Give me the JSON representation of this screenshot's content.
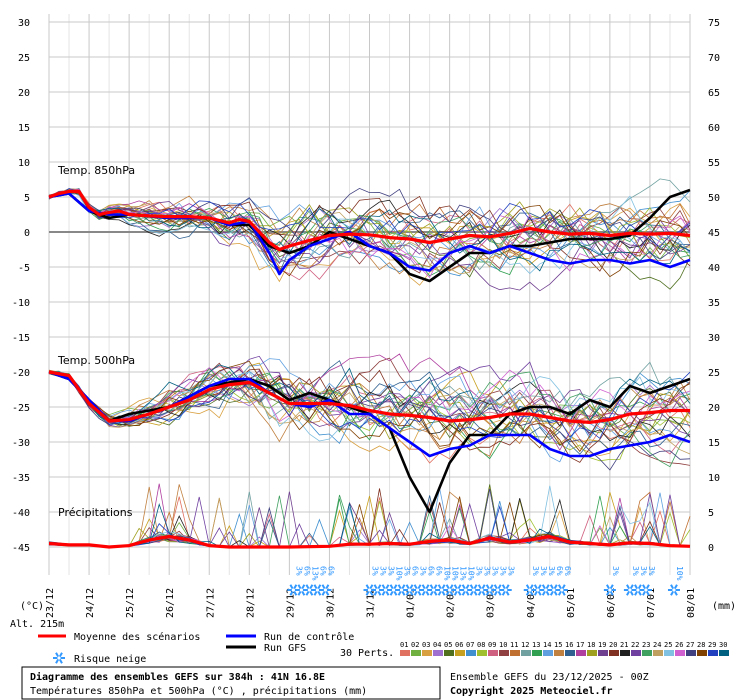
{
  "chart_data": {
    "type": "line",
    "title": "Diagramme des ensembles GEFS sur 384h : 41N 16.8E",
    "subtitle": "Températures 850hPa et 500hPa (°C) , précipitations (mm)",
    "run_info": "Ensemble GEFS du 23/12/2025 - 00Z",
    "copyright": "Copyright 2025 Meteociel.fr",
    "left_axis_label": "(°C)",
    "right_axis_label": "(mm)",
    "altitude_label": "Alt. 215m",
    "left_ticks": [
      "30",
      "25",
      "20",
      "15",
      "10",
      "5",
      "0",
      "-5",
      "-10",
      "-15",
      "-20",
      "-25",
      "-30",
      "-35",
      "-40",
      "-45"
    ],
    "right_ticks": [
      "75",
      "70",
      "65",
      "60",
      "55",
      "50",
      "45",
      "40",
      "35",
      "30",
      "25",
      "20",
      "15",
      "10",
      "5",
      "0"
    ],
    "left_range": [
      -45,
      30
    ],
    "right_range": [
      0,
      75
    ],
    "x_labels": [
      "23/12",
      "24/12",
      "25/12",
      "26/12",
      "27/12",
      "28/12",
      "29/12",
      "30/12",
      "31/12",
      "01/01",
      "02/01",
      "03/01",
      "04/01",
      "05/01",
      "06/01",
      "07/01",
      "08/01"
    ],
    "x_unit": "days from 23/12 00Z",
    "panels": [
      {
        "label": "Temp. 850hPa"
      },
      {
        "label": "Temp. 500hPa"
      },
      {
        "label": "Précipitations"
      }
    ],
    "series": [
      {
        "name": "Moyenne des scénarios",
        "color": "#ff0000",
        "kind": "t850",
        "values": [
          [
            0,
            5
          ],
          [
            0.25,
            5.5
          ],
          [
            0.5,
            5.8
          ],
          [
            0.75,
            5.8
          ],
          [
            1,
            3.5
          ],
          [
            1.25,
            2.5
          ],
          [
            1.5,
            2.8
          ],
          [
            1.75,
            3
          ],
          [
            2,
            2.5
          ],
          [
            2.5,
            2.3
          ],
          [
            3,
            2.2
          ],
          [
            3.5,
            2.2
          ],
          [
            4,
            2
          ],
          [
            4.5,
            1.3
          ],
          [
            4.75,
            1.8
          ],
          [
            5,
            1.5
          ],
          [
            5.25,
            0
          ],
          [
            5.5,
            -1.5
          ],
          [
            5.75,
            -2.5
          ],
          [
            6,
            -2
          ],
          [
            6.5,
            -1.2
          ],
          [
            7,
            -0.5
          ],
          [
            7.5,
            -0.3
          ],
          [
            8,
            -0.4
          ],
          [
            8.5,
            -0.8
          ],
          [
            9,
            -1
          ],
          [
            9.5,
            -1.5
          ],
          [
            10,
            -1
          ],
          [
            10.5,
            -0.5
          ],
          [
            11,
            -0.7
          ],
          [
            11.5,
            -0.2
          ],
          [
            12,
            0.5
          ],
          [
            12.5,
            0
          ],
          [
            13,
            -0.3
          ],
          [
            13.5,
            -0.2
          ],
          [
            14,
            -0.5
          ],
          [
            14.5,
            -0.2
          ],
          [
            15,
            -0.3
          ],
          [
            15.5,
            -0.2
          ],
          [
            16,
            -0.5
          ]
        ]
      },
      {
        "name": "Moyenne des scénarios",
        "color": "#ff0000",
        "kind": "t500",
        "values": [
          [
            0,
            -20
          ],
          [
            0.5,
            -20.5
          ],
          [
            1,
            -24.5
          ],
          [
            1.5,
            -27
          ],
          [
            2,
            -26.8
          ],
          [
            2.5,
            -26
          ],
          [
            3,
            -25
          ],
          [
            3.5,
            -24
          ],
          [
            4,
            -22.5
          ],
          [
            4.5,
            -21.8
          ],
          [
            5,
            -21.5
          ],
          [
            5.5,
            -23
          ],
          [
            6,
            -24.5
          ],
          [
            6.5,
            -24.5
          ],
          [
            7,
            -24.5
          ],
          [
            7.5,
            -24.8
          ],
          [
            8,
            -25.5
          ],
          [
            8.5,
            -26
          ],
          [
            9,
            -26.2
          ],
          [
            9.5,
            -26.5
          ],
          [
            10,
            -27
          ],
          [
            10.5,
            -26.8
          ],
          [
            11,
            -26.5
          ],
          [
            11.5,
            -26
          ],
          [
            12,
            -26
          ],
          [
            12.5,
            -26.5
          ],
          [
            13,
            -27
          ],
          [
            13.5,
            -27.2
          ],
          [
            14,
            -26.8
          ],
          [
            14.5,
            -26
          ],
          [
            15,
            -25.8
          ],
          [
            15.5,
            -25.5
          ],
          [
            16,
            -25.5
          ]
        ]
      },
      {
        "name": "Moyenne des scénarios",
        "color": "#ff0000",
        "kind": "precip",
        "values": [
          [
            0,
            0.5
          ],
          [
            0.5,
            0.3
          ],
          [
            1,
            0.3
          ],
          [
            1.5,
            0
          ],
          [
            2,
            0.2
          ],
          [
            2.5,
            1
          ],
          [
            3,
            1.5
          ],
          [
            3.5,
            1
          ],
          [
            4,
            0.2
          ],
          [
            4.5,
            0
          ],
          [
            5,
            0
          ],
          [
            6,
            0
          ],
          [
            7,
            0.1
          ],
          [
            7.5,
            0.4
          ],
          [
            8,
            0.4
          ],
          [
            8.5,
            0.5
          ],
          [
            9,
            0.4
          ],
          [
            9.5,
            0.8
          ],
          [
            10,
            1
          ],
          [
            10.5,
            0.5
          ],
          [
            11,
            1.3
          ],
          [
            11.5,
            0.7
          ],
          [
            12,
            1
          ],
          [
            12.5,
            1.5
          ],
          [
            13,
            0.7
          ],
          [
            13.5,
            0.5
          ],
          [
            14,
            0.3
          ],
          [
            14.5,
            0.6
          ],
          [
            15,
            0.5
          ],
          [
            15.5,
            0.2
          ],
          [
            16,
            0.1
          ]
        ]
      },
      {
        "name": "Run de contrôle",
        "color": "#0000ff",
        "kind": "t850",
        "values": [
          [
            0,
            5
          ],
          [
            0.5,
            5.5
          ],
          [
            1,
            3
          ],
          [
            1.5,
            2.5
          ],
          [
            2,
            2.5
          ],
          [
            3,
            2
          ],
          [
            4,
            2
          ],
          [
            4.5,
            1
          ],
          [
            5,
            1.5
          ],
          [
            5.5,
            -3
          ],
          [
            5.75,
            -6
          ],
          [
            6,
            -4
          ],
          [
            6.5,
            -2
          ],
          [
            7,
            -1
          ],
          [
            7.5,
            0
          ],
          [
            8,
            -2
          ],
          [
            8.5,
            -3
          ],
          [
            9,
            -5
          ],
          [
            9.5,
            -5.5
          ],
          [
            10,
            -3
          ],
          [
            10.5,
            -2
          ],
          [
            11,
            -3
          ],
          [
            11.5,
            -2
          ],
          [
            12,
            -3
          ],
          [
            12.5,
            -4
          ],
          [
            13,
            -4.5
          ],
          [
            13.5,
            -4
          ],
          [
            14,
            -4
          ],
          [
            14.5,
            -4.5
          ],
          [
            15,
            -4
          ],
          [
            15.5,
            -5
          ],
          [
            16,
            -4
          ]
        ]
      },
      {
        "name": "Run de contrôle",
        "color": "#0000ff",
        "kind": "t500",
        "values": [
          [
            0,
            -20
          ],
          [
            0.5,
            -21
          ],
          [
            1,
            -24
          ],
          [
            1.5,
            -27
          ],
          [
            2,
            -27
          ],
          [
            3,
            -25
          ],
          [
            4,
            -22
          ],
          [
            4.5,
            -21
          ],
          [
            5,
            -21
          ],
          [
            5.5,
            -23
          ],
          [
            6,
            -24.5
          ],
          [
            6.5,
            -25
          ],
          [
            7,
            -24
          ],
          [
            7.5,
            -26
          ],
          [
            8,
            -26
          ],
          [
            8.5,
            -28
          ],
          [
            9,
            -30
          ],
          [
            9.5,
            -32
          ],
          [
            10,
            -31
          ],
          [
            10.5,
            -30.5
          ],
          [
            11,
            -29
          ],
          [
            11.5,
            -29
          ],
          [
            12,
            -29
          ],
          [
            12.5,
            -31
          ],
          [
            13,
            -32
          ],
          [
            13.5,
            -32
          ],
          [
            14,
            -31
          ],
          [
            14.5,
            -30.5
          ],
          [
            15,
            -30
          ],
          [
            15.5,
            -29
          ],
          [
            16,
            -30
          ]
        ]
      },
      {
        "name": "Run GFS",
        "color": "#000000",
        "kind": "t850",
        "values": [
          [
            0,
            5
          ],
          [
            0.5,
            5.5
          ],
          [
            1,
            3
          ],
          [
            1.5,
            2
          ],
          [
            2,
            2.5
          ],
          [
            3,
            2
          ],
          [
            4,
            2
          ],
          [
            4.5,
            1
          ],
          [
            5,
            1
          ],
          [
            5.5,
            -2
          ],
          [
            6,
            -3
          ],
          [
            6.5,
            -2
          ],
          [
            7,
            0
          ],
          [
            7.5,
            -1
          ],
          [
            8,
            -2
          ],
          [
            8.5,
            -3
          ],
          [
            9,
            -6
          ],
          [
            9.5,
            -7
          ],
          [
            10,
            -5
          ],
          [
            10.5,
            -3
          ],
          [
            11,
            -3
          ],
          [
            11.5,
            -2
          ],
          [
            12,
            -2
          ],
          [
            12.5,
            -1.5
          ],
          [
            13,
            -1
          ],
          [
            13.5,
            -1
          ],
          [
            14,
            -1
          ],
          [
            14.5,
            -0.5
          ],
          [
            15,
            2
          ],
          [
            15.5,
            5
          ],
          [
            16,
            6
          ]
        ]
      },
      {
        "name": "Run GFS",
        "color": "#000000",
        "kind": "t500",
        "values": [
          [
            0,
            -20
          ],
          [
            0.5,
            -21
          ],
          [
            1,
            -24
          ],
          [
            1.5,
            -27
          ],
          [
            2,
            -26
          ],
          [
            3,
            -25
          ],
          [
            4,
            -22
          ],
          [
            5,
            -21
          ],
          [
            5.5,
            -22
          ],
          [
            6,
            -24
          ],
          [
            6.5,
            -23
          ],
          [
            7,
            -24
          ],
          [
            7.5,
            -25
          ],
          [
            8,
            -26
          ],
          [
            8.5,
            -28
          ],
          [
            9,
            -35
          ],
          [
            9.5,
            -40
          ],
          [
            10,
            -33
          ],
          [
            10.5,
            -29
          ],
          [
            11,
            -29
          ],
          [
            11.5,
            -26
          ],
          [
            12,
            -25
          ],
          [
            12.5,
            -25
          ],
          [
            13,
            -26
          ],
          [
            13.5,
            -24
          ],
          [
            14,
            -25
          ],
          [
            14.5,
            -22
          ],
          [
            15,
            -23
          ],
          [
            15.5,
            -22
          ],
          [
            16,
            -21
          ]
        ]
      }
    ],
    "snow_risk": [
      {
        "day": 6.1,
        "label": "3%"
      },
      {
        "day": 6.3,
        "label": "6%"
      },
      {
        "day": 6.5,
        "label": "13%"
      },
      {
        "day": 6.7,
        "label": "6%"
      },
      {
        "day": 6.9,
        "label": "6%"
      },
      {
        "day": 8.0,
        "label": "3%"
      },
      {
        "day": 8.2,
        "label": "3%"
      },
      {
        "day": 8.4,
        "label": "3%"
      },
      {
        "day": 8.6,
        "label": "10%"
      },
      {
        "day": 8.8,
        "label": "3%"
      },
      {
        "day": 9.0,
        "label": "6%"
      },
      {
        "day": 9.2,
        "label": "3%"
      },
      {
        "day": 9.4,
        "label": "6%"
      },
      {
        "day": 9.6,
        "label": "6%"
      },
      {
        "day": 9.8,
        "label": "10%"
      },
      {
        "day": 10.0,
        "label": "10%"
      },
      {
        "day": 10.2,
        "label": "13%"
      },
      {
        "day": 10.4,
        "label": "10%"
      },
      {
        "day": 10.6,
        "label": "3%"
      },
      {
        "day": 10.8,
        "label": "3%"
      },
      {
        "day": 11.0,
        "label": "3%"
      },
      {
        "day": 11.2,
        "label": "3%"
      },
      {
        "day": 11.4,
        "label": "3%"
      },
      {
        "day": 12.0,
        "label": "3%"
      },
      {
        "day": 12.2,
        "label": "3%"
      },
      {
        "day": 12.4,
        "label": "3%"
      },
      {
        "day": 12.6,
        "label": "6%"
      },
      {
        "day": 12.8,
        "label": "6%"
      },
      {
        "day": 14.0,
        "label": "3%"
      },
      {
        "day": 14.5,
        "label": "3%"
      },
      {
        "day": 14.7,
        "label": "3%"
      },
      {
        "day": 14.9,
        "label": "3%"
      },
      {
        "day": 15.6,
        "label": "10%"
      }
    ],
    "legend": {
      "mean": "Moyenne des scénarios",
      "control": "Run de contrôle",
      "gfs": "Run GFS",
      "snow": "Risque neige",
      "perts_label": "30 Perts.",
      "pert_numbers": [
        "01",
        "02",
        "03",
        "04",
        "05",
        "06",
        "07",
        "08",
        "09",
        "10",
        "11",
        "12",
        "13",
        "14",
        "15",
        "16",
        "17",
        "18",
        "19",
        "20",
        "21",
        "22",
        "23",
        "24",
        "25",
        "26",
        "27",
        "28",
        "29",
        "30"
      ],
      "pert_colors": [
        "#e07060",
        "#70b040",
        "#d8a040",
        "#a070d0",
        "#507020",
        "#c8a020",
        "#4090d0",
        "#a0c030",
        "#d06080",
        "#904040",
        "#c07030",
        "#70a0a0",
        "#30a050",
        "#60a0e0",
        "#c08040",
        "#306090",
        "#b040a0",
        "#a0a020",
        "#704090",
        "#803020",
        "#202020",
        "#7040a0",
        "#40a060",
        "#c0a060",
        "#80c0e0",
        "#d060d0",
        "#404080",
        "#804000",
        "#2040c0",
        "#006080"
      ]
    },
    "colors": {
      "mean": "#ff0000",
      "control": "#0000ff",
      "gfs": "#000000",
      "grid": "#c8c8c8",
      "snow": "#3399ff"
    }
  }
}
